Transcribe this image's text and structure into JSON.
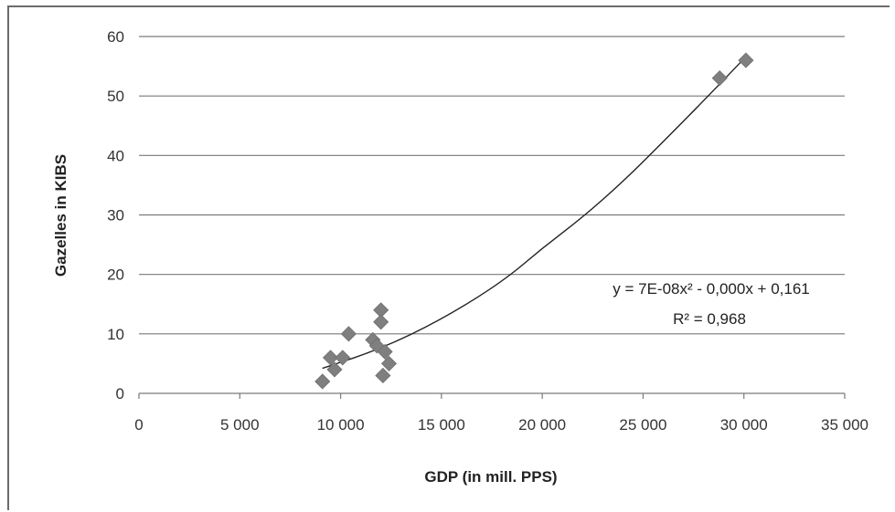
{
  "chart_data": {
    "type": "scatter",
    "title": "",
    "xlabel": "GDP (in mill. PPS)",
    "ylabel": "Gazelles in KIBS",
    "xlim": [
      0,
      35000
    ],
    "ylim": [
      0,
      60
    ],
    "x_ticks": [
      0,
      5000,
      10000,
      15000,
      20000,
      25000,
      30000,
      35000
    ],
    "x_tick_labels": [
      "0",
      "5 000",
      "10 000",
      "15 000",
      "20 000",
      "25 000",
      "30 000",
      "35 000"
    ],
    "y_ticks": [
      0,
      10,
      20,
      30,
      40,
      50,
      60
    ],
    "y_tick_labels": [
      "0",
      "10",
      "20",
      "30",
      "40",
      "50",
      "60"
    ],
    "grid": "horizontal",
    "marker": "diamond",
    "marker_color": "#7f7f7f",
    "series": [
      {
        "points": [
          {
            "x": 9100,
            "y": 2
          },
          {
            "x": 9500,
            "y": 6
          },
          {
            "x": 9700,
            "y": 4
          },
          {
            "x": 10100,
            "y": 6
          },
          {
            "x": 10400,
            "y": 10
          },
          {
            "x": 11600,
            "y": 9
          },
          {
            "x": 11800,
            "y": 8
          },
          {
            "x": 12000,
            "y": 14
          },
          {
            "x": 12000,
            "y": 12
          },
          {
            "x": 12100,
            "y": 3
          },
          {
            "x": 12200,
            "y": 7
          },
          {
            "x": 12400,
            "y": 5
          },
          {
            "x": 28800,
            "y": 53
          },
          {
            "x": 30100,
            "y": 56
          }
        ]
      }
    ],
    "trendline": {
      "type": "polynomial",
      "x_range": [
        9100,
        30100
      ],
      "samples": [
        {
          "x": 9100,
          "y": 4.2
        },
        {
          "x": 12000,
          "y": 7.5
        },
        {
          "x": 15000,
          "y": 12.4
        },
        {
          "x": 18000,
          "y": 18.7
        },
        {
          "x": 20000,
          "y": 24.4
        },
        {
          "x": 22000,
          "y": 29.6
        },
        {
          "x": 24000,
          "y": 35.6
        },
        {
          "x": 26000,
          "y": 42.3
        },
        {
          "x": 28000,
          "y": 49.2
        },
        {
          "x": 30100,
          "y": 56.6
        }
      ],
      "equation": "y = 7E-08x² - 0,000x + 0,161",
      "r_squared": "R² = 0,968",
      "color": "#222222"
    }
  }
}
